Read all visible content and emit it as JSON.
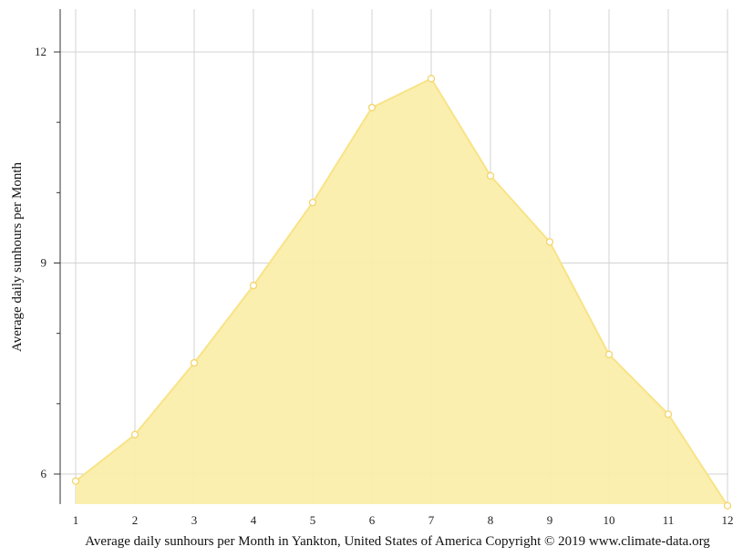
{
  "chart_data": {
    "type": "area",
    "title": "",
    "xlabel": "Average daily sunhours per Month in Yankton, United States of America Copyright © 2019 www.climate-data.org",
    "ylabel": "Average daily sunhours per Month",
    "x": [
      1,
      2,
      3,
      4,
      5,
      6,
      7,
      8,
      9,
      10,
      11,
      12
    ],
    "values": [
      5.9,
      6.56,
      7.58,
      8.68,
      9.86,
      11.21,
      11.62,
      10.24,
      9.3,
      7.7,
      6.85,
      5.55
    ],
    "xlim": [
      1,
      12
    ],
    "ylim": [
      5.6,
      12.6
    ],
    "y_major_ticks": [
      6,
      9,
      12
    ],
    "y_minor_ticks": [
      7,
      8,
      10,
      11
    ],
    "grid": true,
    "legend": "none",
    "colors": {
      "fill": "#faeeaa",
      "line": "#f8e387",
      "marker_fill": "#ffffff",
      "marker_stroke": "#f3d56a",
      "grid": "#d3d3d3",
      "axis": "#333333"
    }
  }
}
